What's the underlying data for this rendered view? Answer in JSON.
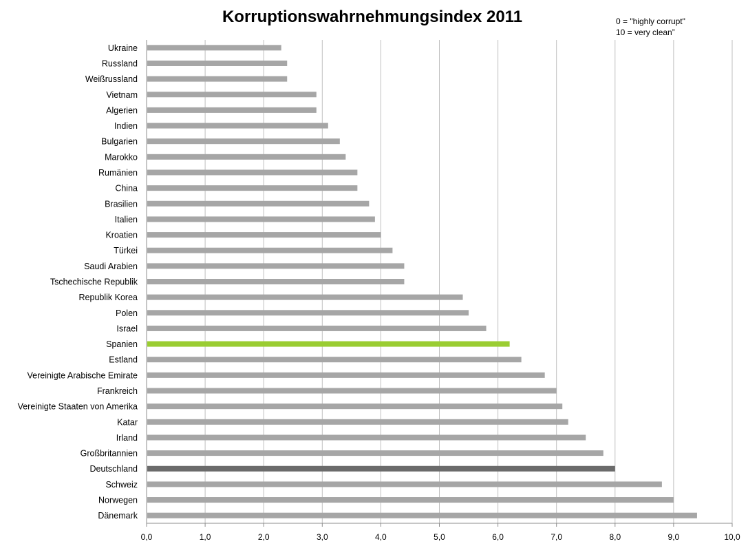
{
  "chart_data": {
    "type": "bar",
    "orientation": "horizontal",
    "title": "Korruptionswahrnehmungsindex 2011",
    "annotation_lines": [
      "0 = \"highly corrupt\"",
      "10 = very clean”"
    ],
    "categories": [
      "Ukraine",
      "Russland",
      "Weißrussland",
      "Vietnam",
      "Algerien",
      "Indien",
      "Bulgarien",
      "Marokko",
      "Rumänien",
      "China",
      "Brasilien",
      "Italien",
      "Kroatien",
      "Türkei",
      "Saudi Arabien",
      "Tschechische Republik",
      "Republik Korea",
      "Polen",
      "Israel",
      "Spanien",
      "Estland",
      "Vereinigte Arabische Emirate",
      "Frankreich",
      "Vereinigte Staaten von Amerika",
      "Katar",
      "Irland",
      "Großbritannien",
      "Deutschland",
      "Schweiz",
      "Norwegen",
      "Dänemark"
    ],
    "values": [
      2.3,
      2.4,
      2.4,
      2.9,
      2.9,
      3.1,
      3.3,
      3.4,
      3.6,
      3.6,
      3.8,
      3.9,
      4.0,
      4.2,
      4.4,
      4.4,
      5.4,
      5.5,
      5.8,
      6.2,
      6.4,
      6.8,
      7.0,
      7.1,
      7.2,
      7.5,
      7.8,
      8.0,
      8.8,
      9.0,
      9.4
    ],
    "xlim": [
      0,
      10
    ],
    "x_ticks": [
      "0,0",
      "1,0",
      "2,0",
      "3,0",
      "4,0",
      "5,0",
      "6,0",
      "7,0",
      "8,0",
      "9,0",
      "10,0"
    ],
    "grid": "vertical",
    "colors": {
      "default": "#a6a6a6",
      "Spanien": "#9acd32",
      "Deutschland": "#6b6b6b"
    }
  }
}
